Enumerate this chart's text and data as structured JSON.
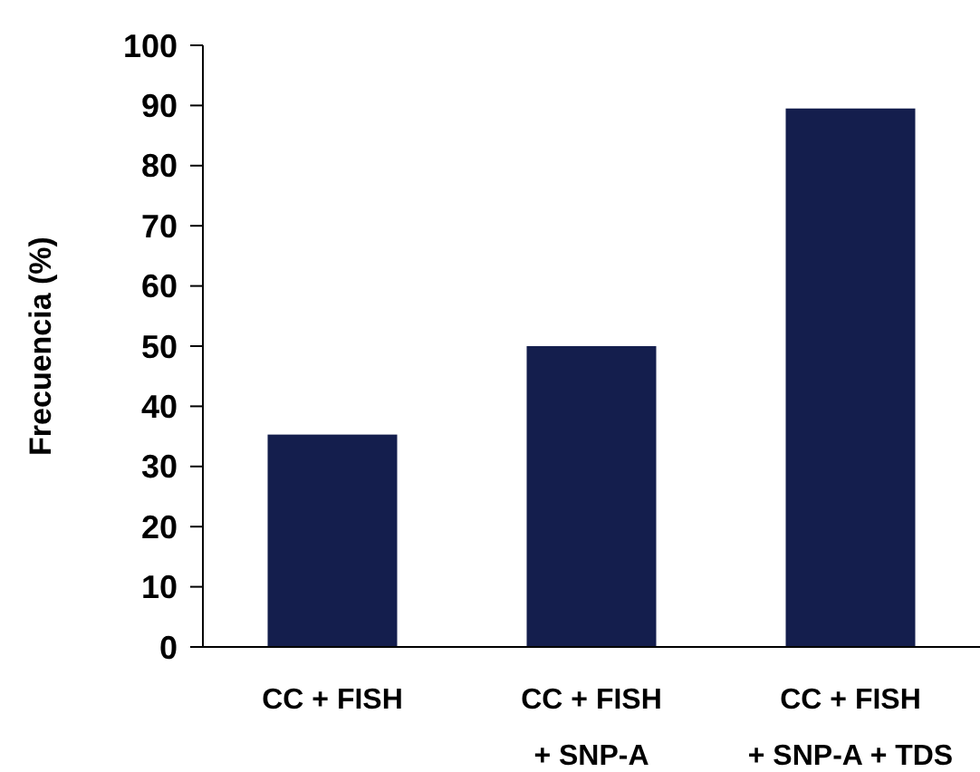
{
  "chart_data": {
    "type": "bar",
    "ylabel": "Frecuencia (%)",
    "categories": [
      "CC + FISH",
      "CC + FISH\n+ SNP-A",
      "CC + FISH\n+ SNP-A + TDS"
    ],
    "values": [
      35.3,
      50,
      89.5
    ],
    "color": "#141e4d",
    "ylim": [
      0,
      100
    ],
    "yticks": [
      0,
      10,
      20,
      30,
      40,
      50,
      60,
      70,
      80,
      90,
      100
    ],
    "grid": false
  }
}
